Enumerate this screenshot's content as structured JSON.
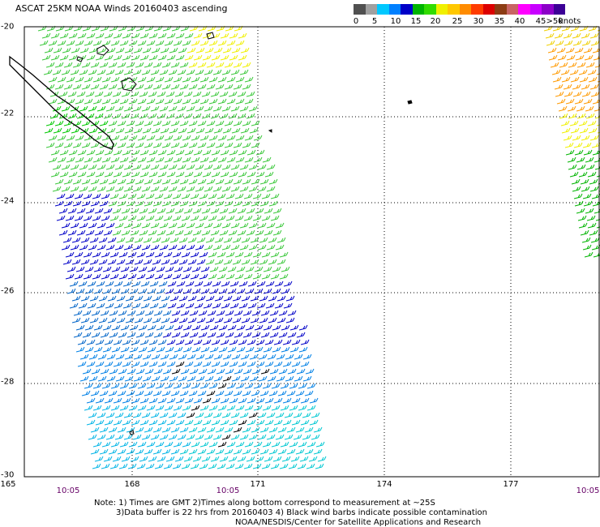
{
  "title": "ASCAT 25KM NOAA Winds 20160403 ascending",
  "legend": {
    "labels": [
      "0",
      "5",
      "10",
      "15",
      "20",
      "25",
      "30",
      "35",
      "40",
      "45",
      ">50"
    ],
    "units": "knots",
    "colors": [
      "#505050",
      "#a0a0a0",
      "#00c8ff",
      "#0080ff",
      "#0000c8",
      "#00b400",
      "#32dc00",
      "#f0f000",
      "#ffc800",
      "#ff8c00",
      "#ff3c00",
      "#dc0000",
      "#8c3c14",
      "#c86464",
      "#ff00ff",
      "#c800ff",
      "#8c00c8",
      "#3c0096"
    ]
  },
  "latitudes": [
    "-20",
    "-22",
    "-24",
    "-26",
    "-28",
    "-30"
  ],
  "longitudes": [
    "165",
    "168",
    "171",
    "174",
    "177"
  ],
  "times": [
    "10:05",
    "10:05",
    "10:05"
  ],
  "notes": [
    "Note: 1) Times are GMT 2)Times along bottom correspond to measurement at ~25S",
    "3)Data buffer is 22 hrs from 20160403 4) Black wind barbs indicate possible contamination",
    "NOAA/NESDIS/Center for Satellite Applications and Research"
  ]
}
